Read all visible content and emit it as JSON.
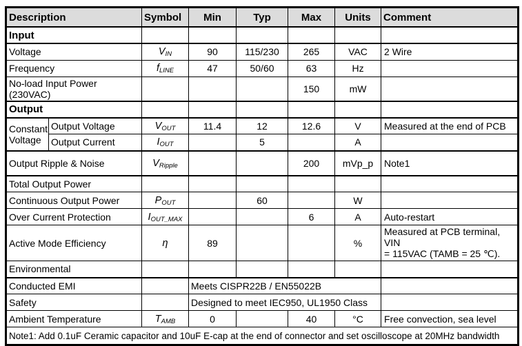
{
  "table": {
    "columns": [
      "Description",
      "Symbol",
      "Min",
      "Typ",
      "Max",
      "Units",
      "Comment"
    ],
    "header_bg": "#dcdcdc",
    "border_color": "#000000",
    "rows": [
      {
        "type": "section",
        "desc": "Input"
      },
      {
        "type": "data",
        "desc": "Voltage",
        "symbol": {
          "main": "V",
          "sub": "IN"
        },
        "min": "90",
        "typ": "115/230",
        "max": "265",
        "units": "VAC",
        "comment": "2 Wire"
      },
      {
        "type": "data",
        "desc": "Frequency",
        "symbol": {
          "main": "f",
          "sub": "LINE"
        },
        "min": "47",
        "typ": "50/60",
        "max": "63",
        "units": "Hz",
        "comment": ""
      },
      {
        "type": "data",
        "desc": "No-load Input Power (230VAC)",
        "symbol": {
          "main": "",
          "sub": ""
        },
        "min": "",
        "typ": "",
        "max": "150",
        "units": "mW",
        "comment": ""
      },
      {
        "type": "section",
        "desc": "Output"
      },
      {
        "type": "split-first",
        "group": "Constant Voltage",
        "desc": "Output Voltage",
        "symbol": {
          "main": "V",
          "sub": "OUT"
        },
        "min": "11.4",
        "typ": "12",
        "max": "12.6",
        "units": "V",
        "comment": "Measured at the end of PCB"
      },
      {
        "type": "split-next",
        "desc": "Output Current",
        "symbol": {
          "main": "I",
          "sub": "OUT"
        },
        "min": "",
        "typ": "5",
        "max": "",
        "units": "A",
        "comment": ""
      },
      {
        "type": "data",
        "height": "tall",
        "desc": "Output Ripple & Noise",
        "symbol": {
          "main": "V",
          "sub": "Ripple"
        },
        "min": "",
        "typ": "",
        "max": "200",
        "units": "mVp_p",
        "comment": "Note1"
      },
      {
        "type": "data",
        "desc": "Total Output Power",
        "symbol": {
          "main": "",
          "sub": ""
        },
        "min": "",
        "typ": "",
        "max": "",
        "units": "",
        "comment": ""
      },
      {
        "type": "data",
        "desc": "Continuous Output Power",
        "symbol": {
          "main": "P",
          "sub": "OUT"
        },
        "min": "",
        "typ": "60",
        "max": "",
        "units": "W",
        "comment": ""
      },
      {
        "type": "data",
        "desc": "Over Current Protection",
        "symbol": {
          "main": "I",
          "sub": "OUT_MAX"
        },
        "min": "",
        "typ": "",
        "max": "6",
        "units": "A",
        "comment": "Auto-restart"
      },
      {
        "type": "data",
        "height": "tall2",
        "desc": "Active Mode Efficiency",
        "symbol": {
          "main": "η",
          "sub": ""
        },
        "min": "89",
        "typ": "",
        "max": "",
        "units": "%",
        "comment": "Measured at PCB  terminal, VIN\n= 115VAC (TAMB = 25 ℃)."
      },
      {
        "type": "data",
        "desc": "Environmental",
        "symbol": {
          "main": "",
          "sub": ""
        },
        "min": "",
        "typ": "",
        "max": "",
        "units": "",
        "comment": ""
      },
      {
        "type": "merged",
        "desc": "Conducted EMI",
        "statement": "Meets CISPR22B / EN55022B",
        "comment": ""
      },
      {
        "type": "merged",
        "desc": "Safety",
        "statement": "Designed to meet IEC950, UL1950 Class",
        "comment": ""
      },
      {
        "type": "data",
        "desc": "Ambient Temperature",
        "symbol": {
          "main": "T",
          "sub": "AMB"
        },
        "min": "0",
        "typ": "",
        "max": "40",
        "units": "°C",
        "comment": "Free convection, sea level"
      },
      {
        "type": "note",
        "desc": "Note1: Add 0.1uF Ceramic  capacitor and 10uF E-cap at the end of connector and set oscilloscope at 20MHz bandwidth"
      }
    ]
  }
}
